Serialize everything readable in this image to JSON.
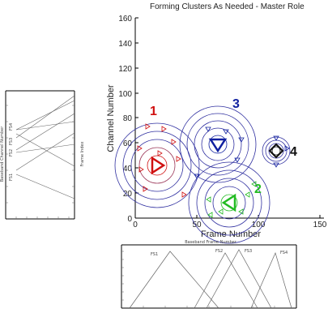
{
  "main": {
    "title": "Forming Clusters As Needed - Master Role",
    "xlabel": "Frame Number",
    "ylabel": "Channel Number",
    "x_ticks": [
      "0",
      "50",
      "100",
      "150"
    ],
    "y_ticks": [
      "0",
      "20",
      "40",
      "60",
      "80",
      "100",
      "120",
      "140",
      "160"
    ],
    "clusters": [
      {
        "label": "1",
        "color": "#d01010",
        "marker": "triangle-right"
      },
      {
        "label": "2",
        "color": "#22bb22",
        "marker": "triangle-left"
      },
      {
        "label": "3",
        "color": "#1020a0",
        "marker": "triangle-down"
      },
      {
        "label": "4",
        "color": "#111111",
        "marker": "diamond"
      }
    ]
  },
  "inset_left": {
    "ylabel": "Baseband Channel Number",
    "y2label": "Frame Index",
    "labels": [
      "FS1",
      "FS2",
      "FS3",
      "FS4"
    ]
  },
  "inset_bottom": {
    "title": "Baseband Frame Number",
    "labels": [
      "FS1",
      "FS2",
      "FS3",
      "FS4"
    ]
  }
}
